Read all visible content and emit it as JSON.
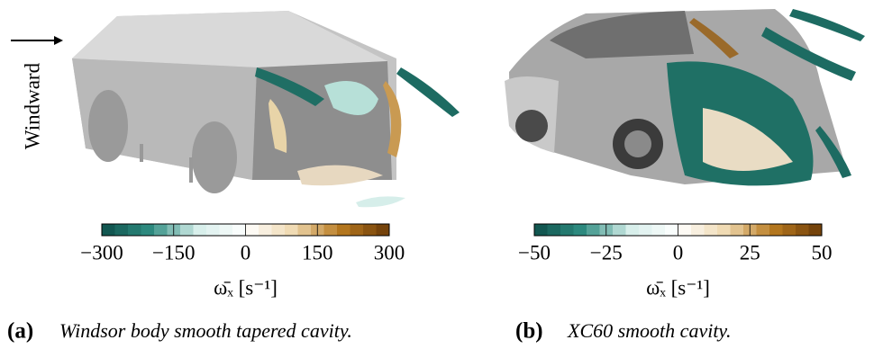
{
  "windward_label": "Windward",
  "panels": [
    {
      "colorbar": {
        "lim": [
          -300,
          300
        ],
        "ticks": [
          {
            "value": -300,
            "label": "−300"
          },
          {
            "value": -150,
            "label": "−150"
          },
          0,
          150,
          300
        ],
        "label": "ω̄ₓ [s⁻¹]",
        "colors": [
          "#0d4f49",
          "#2e8c80",
          "#d6eeea",
          "#ffffff",
          "#efd9b0",
          "#b7791f",
          "#6a3a08"
        ]
      },
      "caption_tag": "(a)",
      "caption": "Windsor body smooth tapered cavity."
    },
    {
      "colorbar": {
        "lim": [
          -50,
          50
        ],
        "ticks": [
          {
            "value": -50,
            "label": "−50"
          },
          {
            "value": -25,
            "label": "−25"
          },
          0,
          25,
          50
        ],
        "label": "ω̄ₓ [s⁻¹]",
        "colors": [
          "#0d4f49",
          "#2e8c80",
          "#d6eeea",
          "#ffffff",
          "#efd9b0",
          "#b7791f",
          "#6a3a08"
        ]
      },
      "caption_tag": "(b)",
      "caption": "XC60 smooth cavity."
    }
  ]
}
